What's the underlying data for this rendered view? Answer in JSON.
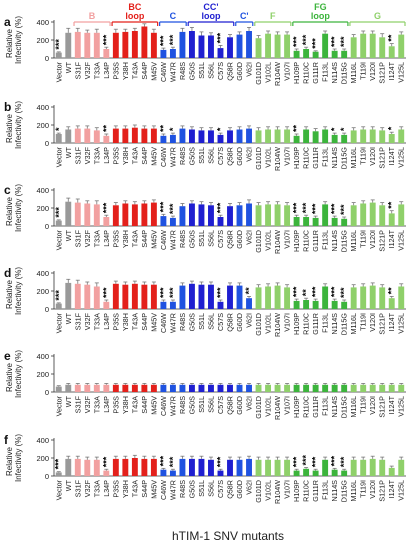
{
  "figure": {
    "xlabel": "hTIM-1 SNV mutants",
    "ylabel_line1": "Relative",
    "ylabel_line2": "Infectivity (%)"
  },
  "regions": [
    {
      "label": "B",
      "color": "#f2a0a0"
    },
    {
      "label": "BC\nloop",
      "color": "#e3201b"
    },
    {
      "label": "C",
      "color": "#1f52e0"
    },
    {
      "label": "CC'\nloop",
      "color": "#1f1fd0"
    },
    {
      "label": "C'",
      "color": "#1f52e0"
    },
    {
      "label": "F",
      "color": "#8fd06a"
    },
    {
      "label": "FG\nloop",
      "color": "#3cb43c"
    },
    {
      "label": "G",
      "color": "#8fd06a"
    }
  ],
  "chart_data": {
    "type": "bar",
    "categories": [
      "Vector",
      "WT",
      "S31F",
      "V32F",
      "T33A",
      "L34P",
      "P35S",
      "Y38H",
      "T43A",
      "S44P",
      "M45V",
      "C46W",
      "W47R",
      "R48S",
      "G50S",
      "S51L",
      "S56L",
      "C57S",
      "Q58R",
      "G60D",
      "V62I",
      "G101D",
      "V102L",
      "R104W",
      "V107I",
      "H109P",
      "R110C",
      "G111R",
      "F113L",
      "N114S",
      "D115G",
      "M116L",
      "T119I",
      "V120I",
      "S121P",
      "I124T",
      "V125L"
    ],
    "category_colors": [
      "#999999",
      "#999999",
      "#f2a0a0",
      "#f2a0a0",
      "#f2a0a0",
      "#f2a0a0",
      "#e3201b",
      "#e3201b",
      "#e3201b",
      "#e3201b",
      "#e3201b",
      "#1f52e0",
      "#1f52e0",
      "#1f52e0",
      "#1f1fd0",
      "#1f1fd0",
      "#1f1fd0",
      "#1f1fd0",
      "#1f1fd0",
      "#1f52e0",
      "#1f52e0",
      "#8fd06a",
      "#8fd06a",
      "#8fd06a",
      "#8fd06a",
      "#3cb43c",
      "#3cb43c",
      "#3cb43c",
      "#3cb43c",
      "#3cb43c",
      "#3cb43c",
      "#8fd06a",
      "#8fd06a",
      "#8fd06a",
      "#8fd06a",
      "#8fd06a",
      "#8fd06a"
    ],
    "ylim": [
      0,
      400
    ],
    "yticks": [
      0,
      200,
      400
    ],
    "panels": [
      {
        "label": "a",
        "values": [
          60,
          280,
          290,
          280,
          280,
          100,
          280,
          290,
          300,
          350,
          280,
          90,
          100,
          290,
          300,
          250,
          250,
          110,
          230,
          260,
          300,
          220,
          270,
          260,
          260,
          80,
          100,
          70,
          270,
          80,
          80,
          230,
          270,
          270,
          230,
          130,
          260
        ],
        "errors": [
          8,
          50,
          40,
          30,
          40,
          20,
          40,
          30,
          30,
          30,
          40,
          20,
          20,
          40,
          40,
          40,
          30,
          30,
          30,
          30,
          40,
          30,
          30,
          30,
          30,
          20,
          20,
          10,
          30,
          20,
          20,
          30,
          30,
          30,
          40,
          30,
          30
        ],
        "stars": [
          "***",
          "",
          "",
          "",
          "",
          "***",
          "",
          "",
          "",
          "",
          "",
          "***",
          "***",
          "",
          "",
          "",
          "",
          "***",
          "",
          "",
          "",
          "",
          "",
          "",
          "",
          "***",
          "***",
          "***",
          "",
          "***",
          "***",
          "",
          "",
          "",
          "",
          "**",
          ""
        ]
      },
      {
        "label": "b",
        "values": [
          100,
          150,
          160,
          160,
          140,
          80,
          160,
          160,
          170,
          160,
          160,
          80,
          90,
          160,
          150,
          140,
          140,
          90,
          140,
          150,
          160,
          140,
          150,
          150,
          150,
          80,
          150,
          130,
          150,
          90,
          90,
          140,
          150,
          150,
          140,
          100,
          150
        ],
        "errors": [
          10,
          30,
          30,
          30,
          30,
          20,
          30,
          30,
          30,
          30,
          30,
          20,
          20,
          30,
          30,
          30,
          30,
          20,
          30,
          30,
          30,
          30,
          30,
          30,
          30,
          20,
          30,
          30,
          30,
          20,
          20,
          30,
          30,
          30,
          30,
          20,
          30
        ],
        "stars": [
          "*",
          "",
          "",
          "",
          "",
          "**",
          "",
          "",
          "",
          "",
          "",
          "**",
          "*",
          "",
          "",
          "",
          "",
          "*",
          "",
          "",
          "",
          "",
          "",
          "",
          "",
          "**",
          "",
          "",
          "",
          "*",
          "*",
          "",
          "",
          "",
          "",
          "*",
          ""
        ]
      },
      {
        "label": "c",
        "values": [
          60,
          270,
          260,
          250,
          240,
          100,
          230,
          250,
          240,
          250,
          260,
          110,
          90,
          220,
          250,
          240,
          230,
          100,
          220,
          230,
          250,
          230,
          240,
          240,
          230,
          100,
          100,
          90,
          240,
          90,
          80,
          230,
          250,
          260,
          230,
          140,
          240
        ],
        "errors": [
          8,
          40,
          40,
          30,
          40,
          20,
          30,
          30,
          30,
          30,
          30,
          20,
          20,
          30,
          30,
          30,
          30,
          20,
          30,
          30,
          40,
          30,
          30,
          30,
          30,
          20,
          20,
          20,
          30,
          20,
          20,
          30,
          30,
          30,
          30,
          30,
          30
        ],
        "stars": [
          "***",
          "",
          "",
          "",
          "",
          "***",
          "",
          "",
          "",
          "",
          "",
          "***",
          "***",
          "",
          "",
          "",
          "",
          "***",
          "",
          "",
          "",
          "",
          "",
          "",
          "",
          "***",
          "***",
          "***",
          "",
          "***",
          "***",
          "",
          "",
          "",
          "",
          "**",
          ""
        ]
      },
      {
        "label": "d",
        "values": [
          60,
          290,
          280,
          270,
          250,
          80,
          280,
          270,
          280,
          270,
          270,
          80,
          80,
          260,
          280,
          270,
          270,
          80,
          260,
          260,
          120,
          240,
          250,
          260,
          240,
          90,
          100,
          90,
          250,
          90,
          80,
          240,
          250,
          260,
          240,
          120,
          250
        ],
        "errors": [
          8,
          40,
          40,
          30,
          40,
          20,
          30,
          30,
          30,
          30,
          30,
          20,
          20,
          30,
          30,
          30,
          30,
          20,
          30,
          30,
          20,
          30,
          30,
          30,
          30,
          20,
          20,
          20,
          30,
          20,
          20,
          30,
          30,
          30,
          30,
          20,
          30
        ],
        "stars": [
          "***",
          "",
          "",
          "",
          "",
          "***",
          "",
          "",
          "",
          "",
          "",
          "***",
          "***",
          "",
          "",
          "",
          "",
          "***",
          "",
          "",
          "**",
          "",
          "",
          "",
          "",
          "***",
          "**",
          "***",
          "",
          "***",
          "***",
          "",
          "",
          "",
          "",
          "**",
          ""
        ]
      },
      {
        "label": "e",
        "values": [
          60,
          80,
          80,
          80,
          80,
          80,
          80,
          80,
          80,
          80,
          80,
          80,
          80,
          80,
          80,
          80,
          80,
          80,
          80,
          80,
          80,
          80,
          80,
          80,
          80,
          80,
          80,
          80,
          80,
          80,
          80,
          80,
          80,
          80,
          80,
          80,
          80
        ],
        "errors": [
          10,
          15,
          15,
          15,
          15,
          15,
          15,
          15,
          15,
          15,
          15,
          15,
          15,
          15,
          15,
          15,
          15,
          15,
          15,
          15,
          15,
          15,
          15,
          15,
          15,
          15,
          15,
          15,
          15,
          15,
          15,
          15,
          15,
          15,
          15,
          15,
          15
        ],
        "stars": [
          "",
          "",
          "",
          "",
          "",
          "",
          "",
          "",
          "",
          "",
          "",
          "",
          "",
          "",
          "",
          "",
          "",
          "",
          "",
          "",
          "",
          "",
          "",
          "",
          "",
          "",
          "",
          "",
          "",
          "",
          "",
          "",
          "",
          "",
          "",
          "",
          ""
        ]
      },
      {
        "label": "f",
        "values": [
          40,
          190,
          190,
          180,
          180,
          60,
          190,
          190,
          200,
          190,
          190,
          70,
          60,
          190,
          190,
          190,
          180,
          60,
          180,
          180,
          190,
          180,
          180,
          180,
          180,
          60,
          80,
          60,
          180,
          70,
          60,
          180,
          180,
          190,
          180,
          90,
          180
        ],
        "errors": [
          8,
          30,
          30,
          30,
          30,
          15,
          30,
          30,
          30,
          30,
          30,
          15,
          15,
          30,
          30,
          30,
          30,
          15,
          30,
          30,
          30,
          30,
          30,
          30,
          30,
          15,
          15,
          15,
          30,
          15,
          15,
          30,
          30,
          30,
          30,
          20,
          30
        ],
        "stars": [
          "***",
          "",
          "",
          "",
          "",
          "***",
          "",
          "",
          "",
          "",
          "",
          "***",
          "***",
          "",
          "",
          "",
          "",
          "***",
          "",
          "",
          "",
          "",
          "",
          "",
          "",
          "***",
          "***",
          "***",
          "",
          "***",
          "***",
          "",
          "",
          "",
          "",
          "",
          ""
        ]
      }
    ]
  }
}
